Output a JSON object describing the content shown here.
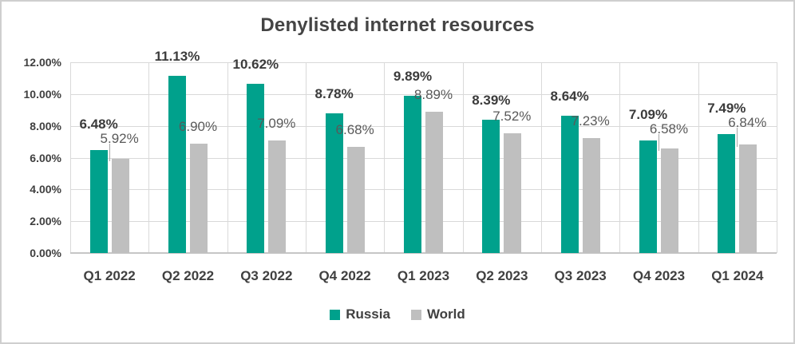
{
  "chart_data": {
    "type": "bar",
    "title": "Denylisted internet resources",
    "categories": [
      "Q1 2022",
      "Q2 2022",
      "Q3 2022",
      "Q4 2022",
      "Q1 2023",
      "Q2 2023",
      "Q3 2023",
      "Q4 2023",
      "Q1 2024"
    ],
    "series": [
      {
        "name": "Russia",
        "color": "#00A18C",
        "values": [
          6.48,
          11.13,
          10.62,
          8.78,
          9.89,
          8.39,
          8.64,
          7.09,
          7.49
        ],
        "labels": [
          "6.48%",
          "11.13%",
          "10.62%",
          "8.78%",
          "9.89%",
          "8.39%",
          "8.64%",
          "7.09%",
          "7.49%"
        ]
      },
      {
        "name": "World",
        "color": "#BFBFBF",
        "values": [
          5.92,
          6.9,
          7.09,
          6.68,
          8.89,
          7.52,
          7.23,
          6.58,
          6.84
        ],
        "labels": [
          "5.92%",
          "6.90%",
          "7.09%",
          "6.68%",
          "8.89%",
          "7.52%",
          "7.23%",
          "6.58%",
          "6.84%"
        ]
      }
    ],
    "y_axis": {
      "min": 0,
      "max": 12,
      "step": 2,
      "tick_labels": [
        "0.00%",
        "2.00%",
        "4.00%",
        "6.00%",
        "8.00%",
        "10.00%",
        "12.00%"
      ]
    },
    "xlabel": "",
    "ylabel": "",
    "grid": true,
    "legend": {
      "position": "bottom",
      "entries": [
        "Russia",
        "World"
      ]
    },
    "world_label_raised": [
      true,
      false,
      false,
      false,
      false,
      false,
      false,
      true,
      true
    ],
    "text_colors": {
      "title": "#444444",
      "axis_labels": "#404040",
      "russia_data_labels": "#3B3B3B",
      "world_data_labels": "#595959"
    }
  }
}
